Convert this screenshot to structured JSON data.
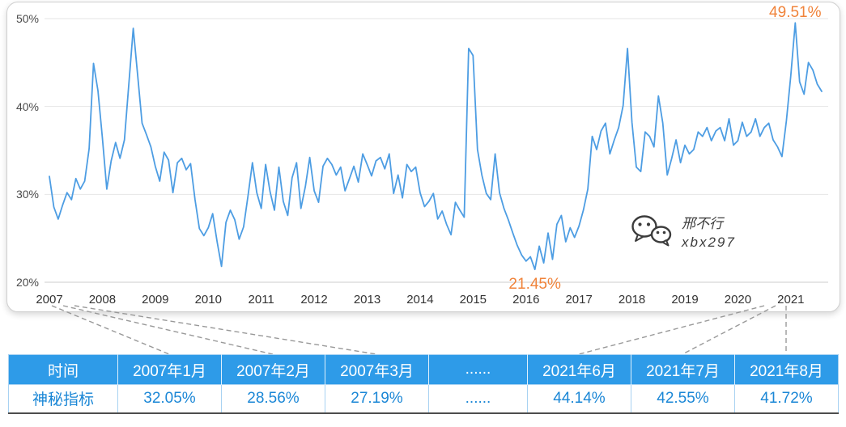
{
  "chart_data": {
    "type": "line",
    "title": "",
    "xlabel": "",
    "ylabel": "",
    "ylim": [
      20,
      50
    ],
    "grid": true,
    "legend": false,
    "line_color": "#4d9de3",
    "x_frequency": "monthly",
    "x_range": "2007-01 to 2021-08",
    "x_tick_labels": [
      "2007",
      "2008",
      "2009",
      "2010",
      "2011",
      "2012",
      "2013",
      "2014",
      "2015",
      "2016",
      "2017",
      "2018",
      "2019",
      "2020",
      "2021"
    ],
    "y_ticks": [
      {
        "label": "50%",
        "value": 50
      },
      {
        "label": "40%",
        "value": 40
      },
      {
        "label": "30%",
        "value": 30
      },
      {
        "label": "20%",
        "value": 20
      }
    ],
    "series": [
      {
        "name": "神秘指标",
        "values": [
          32.05,
          28.56,
          27.19,
          28.8,
          30.2,
          29.4,
          31.8,
          30.6,
          31.5,
          35.2,
          44.9,
          41.8,
          36.5,
          30.6,
          33.8,
          35.9,
          34.1,
          36.2,
          42.5,
          48.9,
          43.6,
          38.1,
          36.8,
          35.4,
          33.2,
          31.5,
          34.8,
          33.9,
          30.2,
          33.6,
          34.1,
          32.8,
          33.5,
          29.4,
          26.1,
          25.3,
          26.2,
          27.8,
          24.6,
          21.8,
          26.8,
          28.2,
          27.1,
          24.9,
          26.3,
          29.8,
          33.6,
          30.2,
          28.4,
          33.4,
          30.3,
          28.2,
          33.1,
          29.2,
          27.6,
          31.9,
          33.6,
          28.4,
          30.9,
          34.2,
          30.4,
          29.1,
          33.2,
          34.1,
          33.4,
          32.2,
          33.1,
          30.4,
          31.8,
          33.2,
          31.4,
          34.6,
          33.4,
          32.1,
          33.8,
          34.2,
          32.9,
          34.6,
          30.1,
          32.2,
          29.6,
          33.4,
          32.6,
          33.1,
          30.2,
          28.6,
          29.2,
          30.1,
          27.2,
          28.1,
          26.6,
          25.4,
          29.1,
          28.2,
          27.4,
          46.6,
          45.8,
          35.1,
          32.2,
          30.1,
          29.4,
          34.6,
          30.2,
          28.4,
          27.1,
          25.6,
          24.2,
          23.1,
          22.4,
          22.9,
          21.45,
          24.1,
          22.2,
          25.6,
          22.6,
          26.6,
          27.6,
          24.6,
          26.2,
          25.1,
          26.4,
          28.2,
          30.6,
          36.6,
          35.1,
          37.2,
          38.1,
          34.6,
          36.2,
          37.6,
          40.1,
          46.6,
          38.2,
          33.1,
          32.6,
          37.1,
          36.6,
          35.4,
          41.2,
          38.1,
          32.2,
          34.1,
          36.2,
          33.6,
          35.6,
          34.6,
          35.1,
          37.1,
          36.6,
          37.6,
          36.1,
          37.2,
          37.6,
          36.1,
          38.6,
          35.6,
          36.1,
          38.2,
          36.6,
          37.1,
          38.6,
          36.6,
          37.6,
          38.1,
          36.2,
          35.4,
          34.3,
          38.4,
          43.5,
          49.51,
          42.8,
          41.4,
          45.0,
          44.14,
          42.55,
          41.72
        ]
      }
    ],
    "annotations": [
      {
        "text": "49.51%",
        "at": "max",
        "color": "#f0833a"
      },
      {
        "text": "21.45%",
        "at": "min",
        "color": "#f0833a"
      }
    ]
  },
  "watermark": {
    "icon": "wechat-icon",
    "name": "邢不行",
    "id": "xbx297"
  },
  "table": {
    "header": [
      "时间",
      "2007年1月",
      "2007年2月",
      "2007年3月",
      "......",
      "2021年6月",
      "2021年7月",
      "2021年8月"
    ],
    "rows": [
      [
        "神秘指标",
        "32.05%",
        "28.56%",
        "27.19%",
        "......",
        "44.14%",
        "42.55%",
        "41.72%"
      ]
    ],
    "header_bg": "#2e9be8",
    "value_color": "#1b87d6"
  }
}
